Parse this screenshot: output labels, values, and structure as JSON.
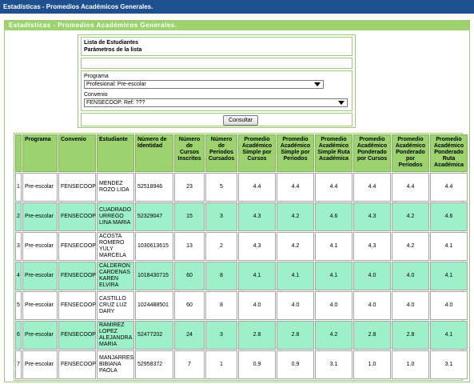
{
  "window_title": "Estadísticas - Promedios Académicos Generales.",
  "panel_title": "Estadísticas - Promedios Académicos Generales.",
  "params": {
    "title1": "Lista de Estudiantes",
    "title2": "Parámetros de la lista",
    "programa_label": "Programa",
    "programa_value": "Profesional: Pre-escolar",
    "convenio_label": "Convenio",
    "convenio_value": "FENSECOOP. Ref: ???",
    "consult_label": "Consultar"
  },
  "table": {
    "headers": [
      "",
      "Programa",
      "Convenio",
      "Estudiante",
      "Número de Identidad",
      "Número de Cursos Inscritos",
      "Número de Periodos Cursados",
      "Promedio Académico Simple por Cursos",
      "Promedio Académico Simple por Periodos",
      "Promedio Académico Simple Ruta Académica",
      "Promedio Académico Ponderado por Cursos",
      "Promedio Académico Ponderado por Periodos",
      "Promedio Académico Ponderado Ruta Académica"
    ],
    "rows": [
      [
        "1",
        "Pre-escolar",
        "FENSECOOP",
        "MENDEZ ROZO LIDA",
        "52518946",
        "23",
        "5",
        "4.4",
        "4.4",
        "4.4",
        "4.4",
        "4.4",
        "4.4"
      ],
      [
        "2",
        "Pre-escolar",
        "FENSECOOP",
        "CUADRADO URREGO LINA MARIA",
        "52329047",
        "15",
        "3",
        "4.3",
        "4.2",
        "4.6",
        "4.3",
        "4.2",
        "4.6"
      ],
      [
        "3",
        "Pre-escolar",
        "FENSECOOP",
        "ACOSTA ROMERO YULY MARCELA",
        "1030613615",
        "13",
        "2",
        "4.3",
        "4.2",
        "4.1",
        "4.3",
        "4.2",
        "4.1"
      ],
      [
        "4",
        "Pre-escolar",
        "FENSECOOP",
        "CALDERON CARDENAS KAREN ELVIRA",
        "1018430715",
        "60",
        "8",
        "4.1",
        "4.1",
        "4.1",
        "4.0",
        "4.0",
        "4.1"
      ],
      [
        "5",
        "Pre-escolar",
        "FENSECOOP",
        "CASTILLO CRUZ LUZ DARY",
        "1024488501",
        "60",
        "8",
        "4.0",
        "4.0",
        "4.0",
        "4.0",
        "4.0",
        "4.0"
      ],
      [
        "6",
        "Pre-escolar",
        "FENSECOOP",
        "RAMIREZ LOPEZ ALEJANDRA MARIA",
        "52477202",
        "24",
        "3",
        "2.8",
        "2.8",
        "4.2",
        "2.8",
        "2.8",
        "4.1"
      ],
      [
        "7",
        "Pre-escolar",
        "FENSECOOP",
        "MANJARRES BIBIANA PAOLA",
        "52958372",
        "7",
        "1",
        "0.9",
        "0.9",
        "3.1",
        "1.0",
        "1.0",
        "3.1"
      ]
    ]
  }
}
